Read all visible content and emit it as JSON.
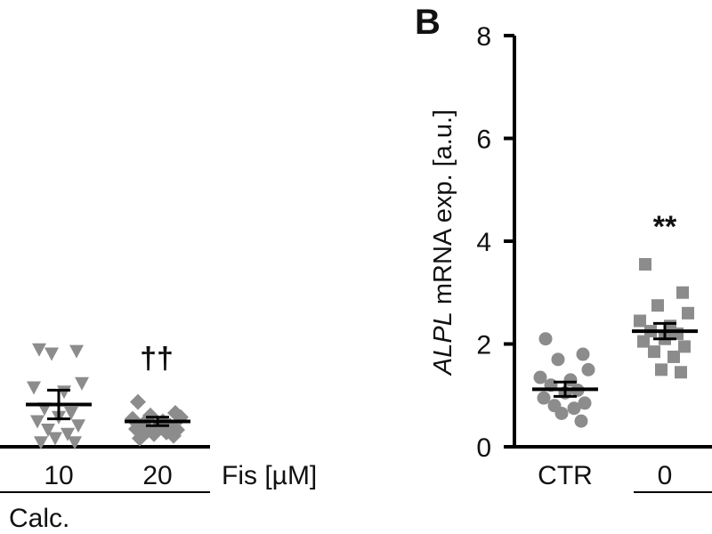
{
  "chart_data": [
    {
      "panel": "",
      "type": "scatter",
      "categories": [
        "10",
        "20"
      ],
      "x_unit_label": "Fis [µM]",
      "group_label": "Calc.",
      "series": [
        {
          "category": "10",
          "marker": "triangle-down",
          "values": [
            1.9,
            1.88,
            1.85,
            1.5,
            1.45,
            1.4,
            1.2,
            1.15,
            1.1,
            1.05,
            1.0,
            0.95,
            0.9,
            0.85,
            0.8,
            0.8
          ],
          "mean": 1.25,
          "sem_upper": 1.42,
          "sem_lower": 1.08,
          "annotation": ""
        },
        {
          "category": "20",
          "marker": "diamond",
          "values": [
            1.28,
            1.15,
            1.12,
            1.1,
            1.08,
            1.05,
            1.02,
            1.0,
            0.98,
            0.96,
            0.95,
            0.93,
            0.92,
            0.9,
            0.88,
            0.85
          ],
          "mean": 1.05,
          "sem_upper": 1.1,
          "sem_lower": 1.0,
          "annotation": "††"
        }
      ]
    },
    {
      "panel": "B",
      "type": "scatter",
      "ylabel_italic": "ALPL",
      "ylabel_rest": " mRNA exp. [a.u.]",
      "ylim": [
        0,
        8
      ],
      "yticks": [
        "0",
        "2",
        "4",
        "6",
        "8"
      ],
      "categories": [
        "CTR",
        "0"
      ],
      "series": [
        {
          "category": "CTR",
          "marker": "circle",
          "values": [
            2.1,
            1.8,
            1.7,
            1.5,
            1.35,
            1.3,
            1.2,
            1.1,
            1.05,
            0.95,
            0.85,
            0.8,
            0.75,
            0.65,
            0.5
          ],
          "mean": 1.12,
          "sem_upper": 1.26,
          "sem_lower": 0.98,
          "annotation": ""
        },
        {
          "category": "0",
          "marker": "square",
          "values": [
            3.55,
            3.0,
            2.75,
            2.6,
            2.45,
            2.35,
            2.25,
            2.2,
            2.1,
            2.05,
            1.95,
            1.85,
            1.75,
            1.5,
            1.45
          ],
          "mean": 2.25,
          "sem_upper": 2.4,
          "sem_lower": 2.1,
          "annotation": "**"
        }
      ]
    }
  ],
  "colors": {
    "marker": "#8c8c8c",
    "axis": "#000000",
    "text": "#111111"
  }
}
